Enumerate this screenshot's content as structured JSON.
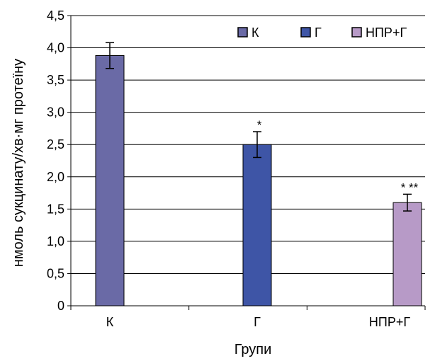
{
  "chart_data": {
    "type": "bar",
    "categories": [
      "К",
      "Г",
      "НПР+Г"
    ],
    "values": [
      3.88,
      2.5,
      1.6
    ],
    "errors": [
      0.2,
      0.2,
      0.13
    ],
    "significance": [
      "",
      "*",
      "* **"
    ],
    "colors": [
      "#6a6aa6",
      "#3e55a6",
      "#b79ac7"
    ],
    "ylabel": "нмоль сукцинату/хв·мг протеїну",
    "xlabel": "Групи",
    "ylim": [
      0,
      4.5
    ],
    "yticks": [
      "0",
      "0,5",
      "1,0",
      "1,5",
      "2,0",
      "2,5",
      "3,0",
      "3,5",
      "4,0",
      "4,5"
    ],
    "grid": true,
    "legend": {
      "position": "top-right",
      "items": [
        "К",
        "Г",
        "НПР+Г"
      ]
    }
  }
}
